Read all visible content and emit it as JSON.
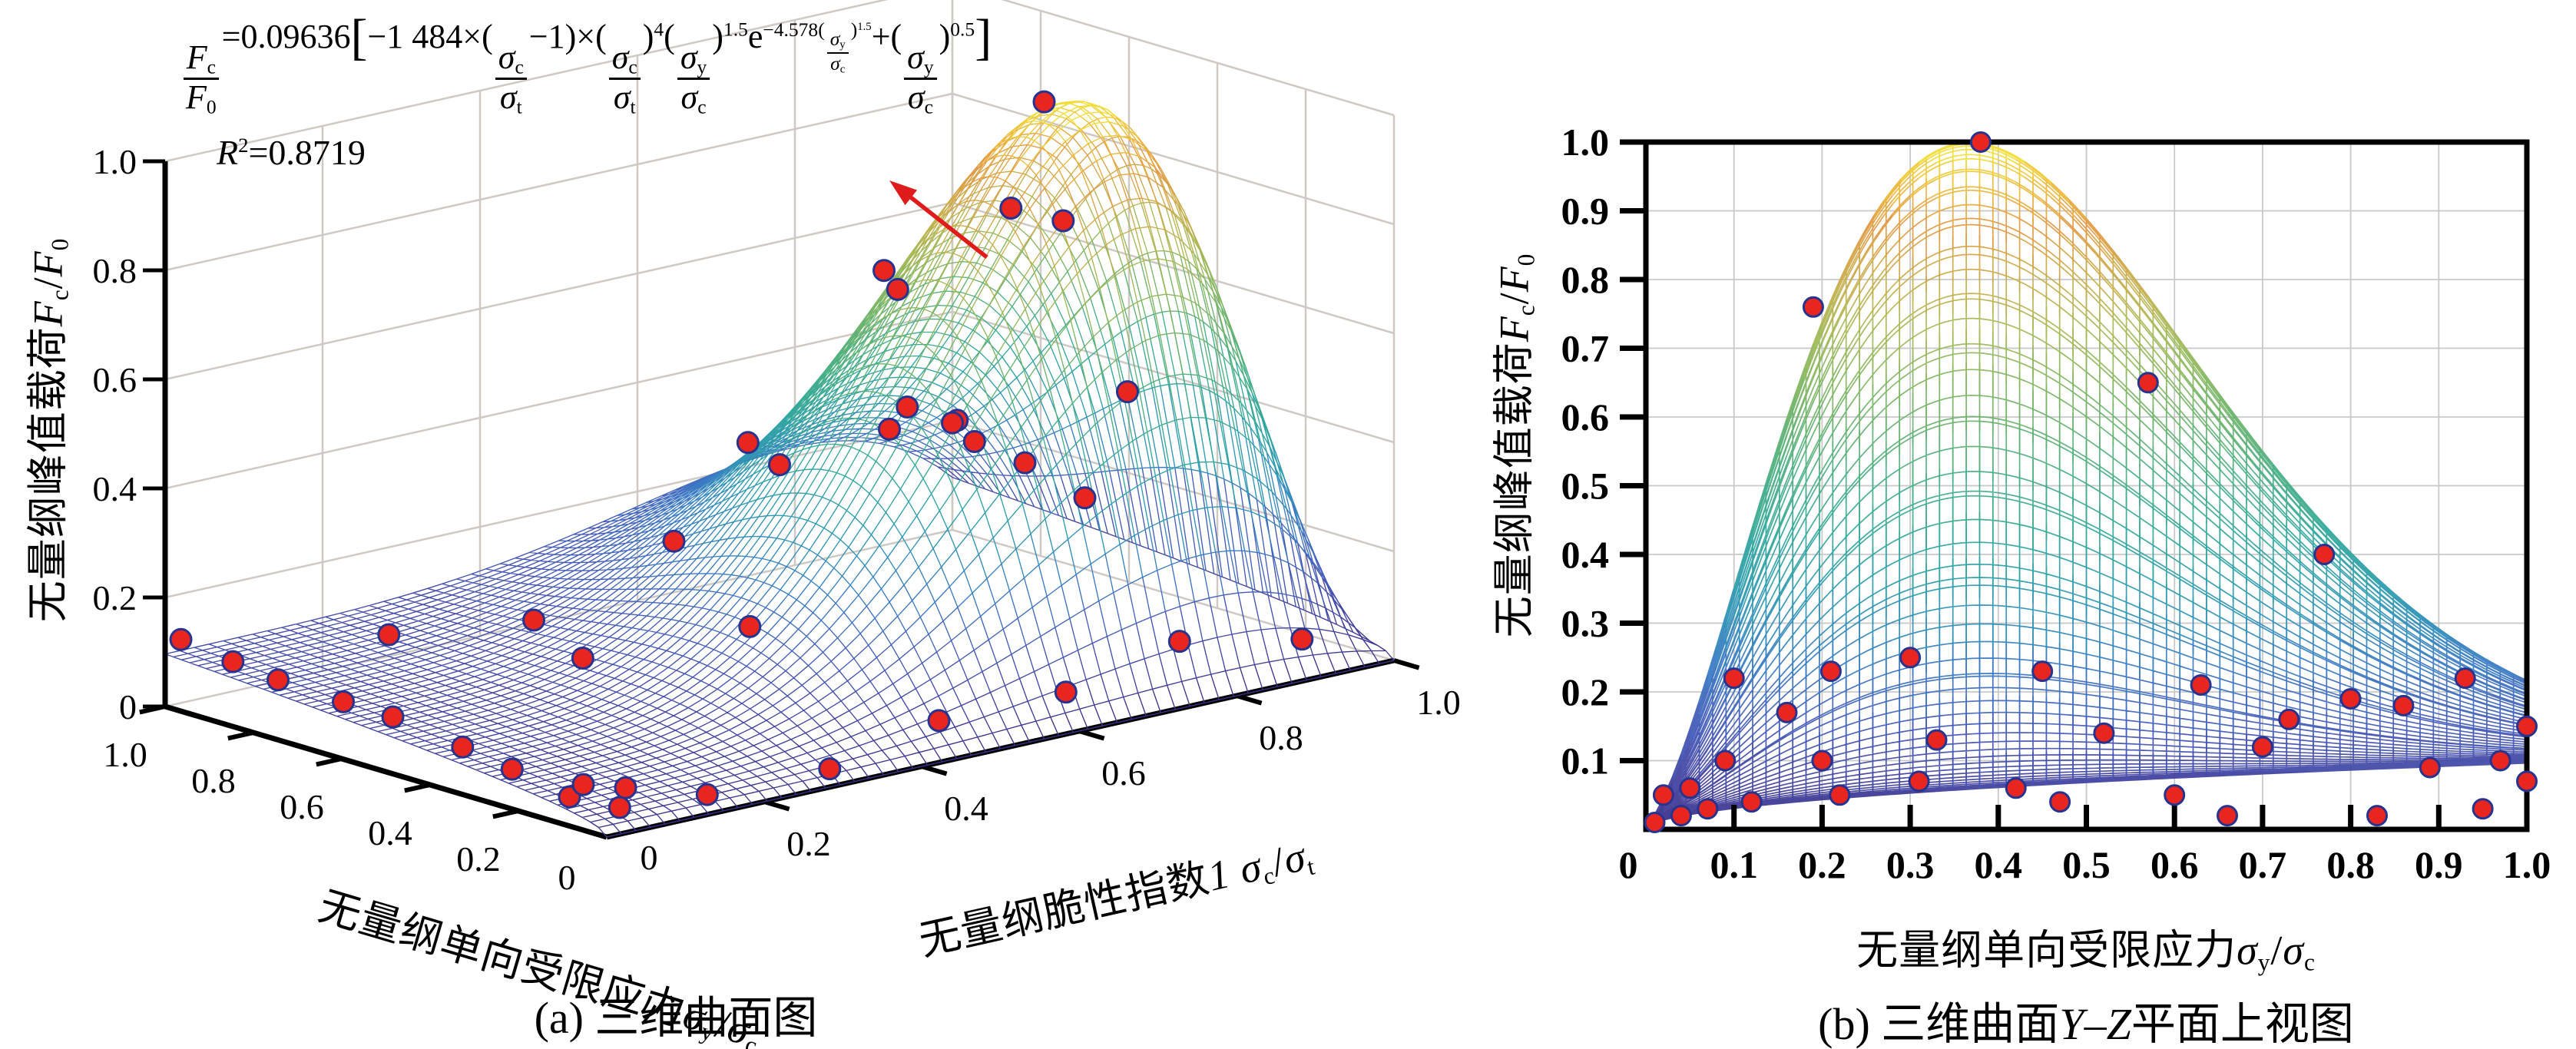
{
  "colors": {
    "scatter_fill": "#e8251f",
    "scatter_edge": "#27348f",
    "axis": "#000000",
    "grid": "#c9c9c9",
    "wall_grid": "#cfc9c4",
    "arrow": "#e01b1b",
    "text": "#000000"
  },
  "colormap": {
    "name": "parula-like (purple-blue-teal-green-amber-yellow by height)",
    "stops": [
      [
        0.0,
        "#3a3289"
      ],
      [
        0.07,
        "#4343a0"
      ],
      [
        0.15,
        "#455cba"
      ],
      [
        0.24,
        "#3b7cc4"
      ],
      [
        0.33,
        "#2e98b4"
      ],
      [
        0.43,
        "#33a99c"
      ],
      [
        0.52,
        "#4bb084"
      ],
      [
        0.62,
        "#74b568"
      ],
      [
        0.72,
        "#a3ba58"
      ],
      [
        0.8,
        "#c9af4d"
      ],
      [
        0.88,
        "#e39a43"
      ],
      [
        0.94,
        "#edbe39"
      ],
      [
        1.0,
        "#f2e636"
      ]
    ]
  },
  "chart_data": [
    {
      "id": "panel-a",
      "type": "surface3d-mesh",
      "title": "(a) 三维曲面图",
      "x_axis": {
        "label": "无量纲脆性指数1 σc/σt",
        "ticks": [
          "0",
          "0.2",
          "0.4",
          "0.6",
          "0.8",
          "1.0"
        ],
        "range": [
          0,
          1
        ]
      },
      "y_axis": {
        "label": "无量纲单向受限应力σy/σc",
        "ticks": [
          "0",
          "0.2",
          "0.4",
          "0.6",
          "0.8",
          "1.0"
        ],
        "range": [
          0,
          1
        ]
      },
      "z_axis": {
        "label": "无量纲峰值载荷Fc/F0",
        "ticks": [
          "0",
          "0.2",
          "0.4",
          "0.6",
          "0.8",
          "1.0"
        ],
        "range": [
          0,
          1
        ]
      },
      "surface_fit": {
        "equation": "Fc/F0 = 0.09636[−1 484×(σc/σt−1)×(σc/σt)^4 (σy/σc)^1.5 e^(−4.578(σy/σc)^1.5) + (σy/σc)^0.5]",
        "coef": 0.09636,
        "amp": 1484,
        "pow_r": 4,
        "pow_x": 1.5,
        "exp_coef": 4.578,
        "pow_root": 0.5,
        "r_squared": 0.8719
      },
      "grid_divisions": 54,
      "scatter_points_rxdz": [
        [
          0.02,
          0.12,
          0.005
        ],
        [
          0.02,
          0.25,
          0.01
        ],
        [
          0.03,
          0.38,
          0.005
        ],
        [
          0.02,
          0.52,
          0.02
        ],
        [
          0.03,
          0.65,
          0.005
        ],
        [
          0.02,
          0.78,
          0.01
        ],
        [
          0.03,
          0.9,
          0.005
        ],
        [
          0.02,
          1.0,
          0.02
        ],
        [
          0.05,
          0.06,
          0
        ],
        [
          0.08,
          0.1,
          0.01
        ],
        [
          0.06,
          0.16,
          0
        ],
        [
          0.15,
          0.04,
          0
        ],
        [
          0.3,
          0.03,
          0
        ],
        [
          0.45,
          0.05,
          0
        ],
        [
          0.6,
          0.03,
          0.01
        ],
        [
          0.75,
          0.04,
          0
        ],
        [
          0.9,
          0.03,
          0
        ],
        [
          0.25,
          0.5,
          0.03
        ],
        [
          0.3,
          0.7,
          0.02
        ],
        [
          0.35,
          0.3,
          0.04
        ],
        [
          0.2,
          0.85,
          0.01
        ],
        [
          0.5,
          0.5,
          0.02
        ],
        [
          0.55,
          0.3,
          0.03
        ],
        [
          0.45,
          0.65,
          0.01
        ],
        [
          0.6,
          0.75,
          0.02
        ],
        [
          0.65,
          0.5,
          -0.02
        ],
        [
          0.7,
          0.62,
          0.05
        ],
        [
          0.78,
          0.4,
          0.02
        ],
        [
          0.72,
          0.25,
          0.03
        ],
        [
          0.85,
          0.6,
          0.04
        ],
        [
          0.95,
          0.9,
          0.05
        ],
        [
          1.0,
          0.95,
          0.08
        ],
        [
          0.98,
          0.8,
          0.02
        ],
        [
          1.0,
          0.7,
          0.05
        ],
        [
          0.92,
          1.0,
          0.03
        ],
        [
          1.0,
          1.0,
          0.1
        ],
        [
          0.97,
          0.55,
          0.06
        ]
      ]
    },
    {
      "id": "panel-b",
      "type": "surface-projection-yz",
      "title": "(b) 三维曲面Y–Z平面上视图",
      "x_axis": {
        "label": "无量纲单向受限应力σy/σc",
        "ticks": [
          "0",
          "0.1",
          "0.2",
          "0.3",
          "0.4",
          "0.5",
          "0.6",
          "0.7",
          "0.8",
          "0.9",
          "1.0"
        ],
        "range": [
          0,
          1
        ]
      },
      "y_axis": {
        "label": "无量纲峰值载荷Fc/F0",
        "ticks": [
          "1.0",
          "0.9",
          "0.8",
          "0.7",
          "0.6",
          "0.5",
          "0.4",
          "0.3",
          "0.2",
          "0.1"
        ],
        "range": [
          0,
          1
        ]
      },
      "curve_family": {
        "parameter": "σc/σt",
        "count": 66,
        "range": [
          0,
          1
        ]
      },
      "peak": {
        "x": 0.38,
        "z": 1.0
      },
      "scatter_points_xz": [
        [
          0.01,
          0.01
        ],
        [
          0.02,
          0.05
        ],
        [
          0.04,
          0.02
        ],
        [
          0.05,
          0.06
        ],
        [
          0.07,
          0.03
        ],
        [
          0.09,
          0.1
        ],
        [
          0.1,
          0.22
        ],
        [
          0.12,
          0.04
        ],
        [
          0.16,
          0.17
        ],
        [
          0.19,
          0.76
        ],
        [
          0.2,
          0.1
        ],
        [
          0.21,
          0.23
        ],
        [
          0.22,
          0.05
        ],
        [
          0.3,
          0.25
        ],
        [
          0.31,
          0.07
        ],
        [
          0.33,
          0.13
        ],
        [
          0.38,
          1.0
        ],
        [
          0.42,
          0.06
        ],
        [
          0.45,
          0.23
        ],
        [
          0.47,
          0.04
        ],
        [
          0.52,
          0.14
        ],
        [
          0.57,
          0.65
        ],
        [
          0.6,
          0.05
        ],
        [
          0.63,
          0.21
        ],
        [
          0.66,
          0.02
        ],
        [
          0.7,
          0.12
        ],
        [
          0.73,
          0.16
        ],
        [
          0.77,
          0.4
        ],
        [
          0.8,
          0.19
        ],
        [
          0.83,
          0.02
        ],
        [
          0.86,
          0.18
        ],
        [
          0.89,
          0.09
        ],
        [
          0.93,
          0.22
        ],
        [
          0.95,
          0.03
        ],
        [
          0.97,
          0.1
        ],
        [
          1.0,
          0.07
        ],
        [
          1.0,
          0.15
        ]
      ]
    }
  ],
  "rich_text": {
    "formula": [
      {
        "f": {
          "n": [
            {
              "i": "F"
            },
            {
              "b": "c"
            }
          ],
          "d": [
            {
              "i": "F"
            },
            {
              "b": "0"
            }
          ]
        }
      },
      {
        "t": "=0.09636"
      },
      {
        "big": "["
      },
      {
        "t": "−1 484×("
      },
      {
        "f": {
          "n": [
            {
              "i": "σ"
            },
            {
              "b": "c"
            }
          ],
          "d": [
            {
              "i": "σ"
            },
            {
              "b": "t"
            }
          ]
        }
      },
      {
        "t": "−1)×("
      },
      {
        "f": {
          "n": [
            {
              "i": "σ"
            },
            {
              "b": "c"
            }
          ],
          "d": [
            {
              "i": "σ"
            },
            {
              "b": "t"
            }
          ]
        }
      },
      {
        "t": ")"
      },
      {
        "s": "4"
      },
      {
        "t": "("
      },
      {
        "f": {
          "n": [
            {
              "i": "σ"
            },
            {
              "b": "y"
            }
          ],
          "d": [
            {
              "i": "σ"
            },
            {
              "b": "c"
            }
          ]
        }
      },
      {
        "t": ")"
      },
      {
        "s": "1.5"
      },
      {
        "t": "e"
      },
      {
        "e": [
          {
            "t": "−4.578("
          },
          {
            "f": {
              "n": [
                {
                  "i": "σ"
                },
                {
                  "b": "y"
                }
              ],
              "d": [
                {
                  "i": "σ"
                },
                {
                  "b": "c"
                }
              ]
            }
          },
          {
            "t": ")"
          },
          {
            "s": "1.5"
          }
        ]
      },
      {
        "t": "+("
      },
      {
        "f": {
          "n": [
            {
              "i": "σ"
            },
            {
              "b": "y"
            }
          ],
          "d": [
            {
              "i": "σ"
            },
            {
              "b": "c"
            }
          ]
        }
      },
      {
        "t": ")"
      },
      {
        "s": "0.5"
      },
      {
        "big": "]"
      }
    ],
    "r_squared": [
      {
        "i": "R"
      },
      {
        "s": "2"
      },
      {
        "t": "=0.8719"
      }
    ],
    "a_z_title": [
      {
        "t": "无量纲峰值载荷"
      },
      {
        "i": "F"
      },
      {
        "b": "c"
      },
      {
        "t": "/"
      },
      {
        "i": "F"
      },
      {
        "b": "0"
      }
    ],
    "a_y_title": [
      {
        "t": "无量纲单向受限应力"
      },
      {
        "i": "σ"
      },
      {
        "b": "y"
      },
      {
        "t": "/"
      },
      {
        "i": "σ"
      },
      {
        "b": "c"
      }
    ],
    "a_x_title": [
      {
        "t": "无量纲脆性指数"
      },
      {
        "i": "1 "
      },
      {
        "i": "σ"
      },
      {
        "b": "c"
      },
      {
        "t": "/"
      },
      {
        "i": "σ"
      },
      {
        "b": "t"
      }
    ],
    "b_y_title": [
      {
        "t": "无量纲峰值载荷"
      },
      {
        "i": "F"
      },
      {
        "b": "c"
      },
      {
        "t": "/"
      },
      {
        "i": "F"
      },
      {
        "b": "0"
      }
    ],
    "b_x_title": [
      {
        "t": "无量纲单向受限应力"
      },
      {
        "i": "σ"
      },
      {
        "b": "y"
      },
      {
        "t": "/"
      },
      {
        "i": "σ"
      },
      {
        "b": "c"
      }
    ],
    "cap_b": [
      {
        "t": "(b) 三维曲面"
      },
      {
        "i": "Y"
      },
      {
        "t": "–"
      },
      {
        "i": "Z"
      },
      {
        "t": "平面上视图"
      }
    ]
  }
}
